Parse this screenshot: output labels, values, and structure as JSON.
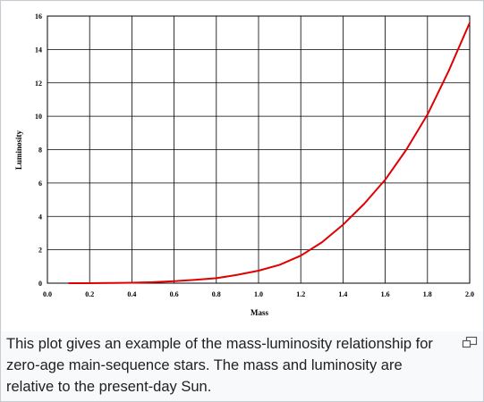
{
  "chart_data": {
    "type": "line",
    "title": "",
    "xlabel": "Mass",
    "ylabel": "Luminosity",
    "xlim": [
      0.0,
      2.0
    ],
    "ylim": [
      0,
      16
    ],
    "xticks": [
      "0.0",
      "0.2",
      "0.4",
      "0.6",
      "0.8",
      "1.0",
      "1.2",
      "1.4",
      "1.6",
      "1.8",
      "2.0"
    ],
    "yticks": [
      "0",
      "2",
      "4",
      "6",
      "8",
      "10",
      "12",
      "14",
      "16"
    ],
    "grid": true,
    "series": [
      {
        "color": "#e00000",
        "x": [
          0.1,
          0.2,
          0.3,
          0.4,
          0.5,
          0.6,
          0.7,
          0.8,
          0.9,
          1.0,
          1.1,
          1.2,
          1.3,
          1.4,
          1.5,
          1.6,
          1.7,
          1.8,
          1.9,
          2.0
        ],
        "y": [
          0.0,
          0.003,
          0.012,
          0.03,
          0.06,
          0.12,
          0.2,
          0.3,
          0.5,
          0.75,
          1.1,
          1.65,
          2.45,
          3.5,
          4.75,
          6.2,
          8.0,
          10.1,
          12.7,
          15.6
        ]
      }
    ]
  },
  "caption": {
    "text": "This plot gives an example of the mass-luminosity relationship for zero-age main-sequence stars. The mass and luminosity are relative to the present-day Sun."
  },
  "icons": {
    "enlarge": "enlarge-icon"
  }
}
